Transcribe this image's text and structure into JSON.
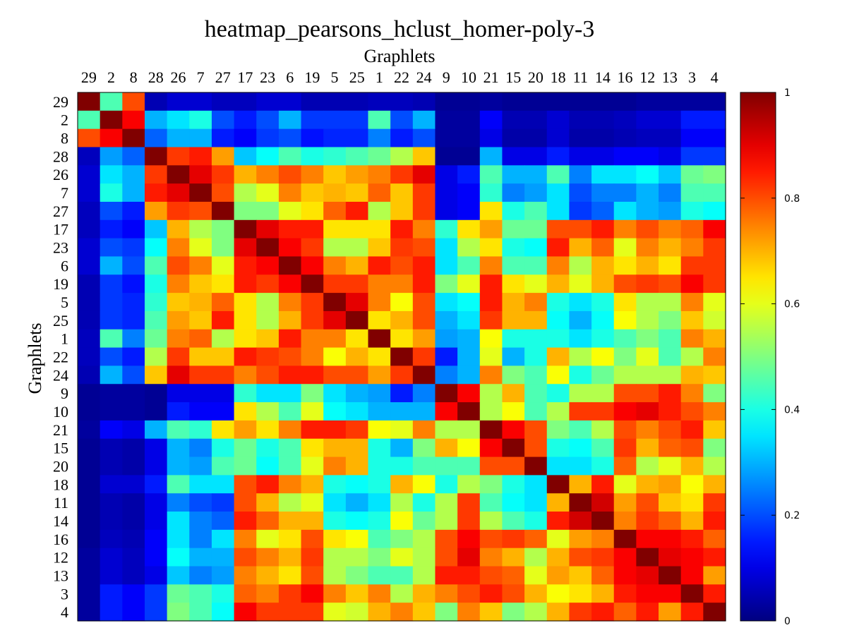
{
  "chart_data": {
    "type": "heatmap",
    "title": "heatmap_pearsons_hclust_homer-poly-3",
    "xlabel": "Graphlets",
    "ylabel": "Graphlets",
    "labels": [
      "29",
      "2",
      "8",
      "28",
      "26",
      "7",
      "27",
      "17",
      "23",
      "6",
      "19",
      "5",
      "25",
      "1",
      "22",
      "24",
      "9",
      "10",
      "21",
      "15",
      "20",
      "18",
      "11",
      "14",
      "16",
      "12",
      "13",
      "3",
      "4"
    ],
    "colorbar": {
      "min": 0,
      "max": 1,
      "ticks": [
        0,
        0.2,
        0.4,
        0.6,
        0.8,
        1
      ],
      "tick_labels": [
        "0",
        "0.2",
        "0.4",
        "0.6",
        "0.8",
        "1"
      ],
      "colormap": "jet"
    },
    "values": [
      [
        1.0,
        0.45,
        0.8,
        0.05,
        0.08,
        0.08,
        0.06,
        0.06,
        0.08,
        0.08,
        0.05,
        0.05,
        0.05,
        0.06,
        0.06,
        0.05,
        0.02,
        0.02,
        0.03,
        0.02,
        0.02,
        0.02,
        0.02,
        0.02,
        0.02,
        0.03,
        0.03,
        0.03,
        0.03
      ],
      [
        0.45,
        1.0,
        0.88,
        0.3,
        0.35,
        0.4,
        0.2,
        0.15,
        0.2,
        0.3,
        0.18,
        0.18,
        0.18,
        0.45,
        0.2,
        0.3,
        0.03,
        0.03,
        0.12,
        0.05,
        0.05,
        0.08,
        0.05,
        0.05,
        0.06,
        0.08,
        0.08,
        0.15,
        0.15
      ],
      [
        0.8,
        0.88,
        1.0,
        0.22,
        0.3,
        0.3,
        0.15,
        0.12,
        0.18,
        0.2,
        0.14,
        0.16,
        0.16,
        0.25,
        0.15,
        0.2,
        0.03,
        0.03,
        0.1,
        0.04,
        0.04,
        0.08,
        0.04,
        0.04,
        0.05,
        0.06,
        0.06,
        0.12,
        0.12
      ],
      [
        0.06,
        0.28,
        0.22,
        1.0,
        0.82,
        0.85,
        0.72,
        0.32,
        0.38,
        0.45,
        0.4,
        0.42,
        0.45,
        0.48,
        0.55,
        0.68,
        0.02,
        0.02,
        0.3,
        0.1,
        0.1,
        0.15,
        0.1,
        0.1,
        0.12,
        0.12,
        0.1,
        0.18,
        0.18
      ],
      [
        0.08,
        0.35,
        0.3,
        0.82,
        1.0,
        0.9,
        0.82,
        0.7,
        0.75,
        0.8,
        0.75,
        0.68,
        0.72,
        0.75,
        0.82,
        0.9,
        0.1,
        0.15,
        0.45,
        0.3,
        0.3,
        0.45,
        0.25,
        0.35,
        0.35,
        0.38,
        0.32,
        0.48,
        0.5
      ],
      [
        0.08,
        0.4,
        0.3,
        0.85,
        0.9,
        1.0,
        0.8,
        0.55,
        0.6,
        0.75,
        0.68,
        0.7,
        0.68,
        0.78,
        0.68,
        0.82,
        0.1,
        0.12,
        0.42,
        0.25,
        0.28,
        0.35,
        0.2,
        0.25,
        0.25,
        0.3,
        0.25,
        0.45,
        0.45
      ],
      [
        0.06,
        0.2,
        0.15,
        0.72,
        0.82,
        0.8,
        1.0,
        0.5,
        0.5,
        0.6,
        0.65,
        0.78,
        0.85,
        0.55,
        0.68,
        0.82,
        0.1,
        0.12,
        0.65,
        0.4,
        0.45,
        0.35,
        0.18,
        0.22,
        0.35,
        0.3,
        0.28,
        0.4,
        0.38
      ],
      [
        0.06,
        0.15,
        0.12,
        0.32,
        0.7,
        0.55,
        0.5,
        1.0,
        0.9,
        0.85,
        0.85,
        0.65,
        0.65,
        0.65,
        0.85,
        0.75,
        0.42,
        0.65,
        0.72,
        0.48,
        0.48,
        0.8,
        0.8,
        0.85,
        0.75,
        0.8,
        0.75,
        0.78,
        0.88
      ],
      [
        0.08,
        0.2,
        0.18,
        0.38,
        0.75,
        0.6,
        0.5,
        0.9,
        1.0,
        0.88,
        0.82,
        0.55,
        0.55,
        0.68,
        0.82,
        0.8,
        0.35,
        0.55,
        0.65,
        0.4,
        0.38,
        0.85,
        0.7,
        0.78,
        0.6,
        0.75,
        0.7,
        0.75,
        0.82
      ],
      [
        0.08,
        0.3,
        0.2,
        0.45,
        0.8,
        0.75,
        0.6,
        0.85,
        0.88,
        1.0,
        0.88,
        0.75,
        0.7,
        0.85,
        0.8,
        0.85,
        0.35,
        0.45,
        0.75,
        0.45,
        0.45,
        0.75,
        0.55,
        0.7,
        0.65,
        0.7,
        0.65,
        0.82,
        0.82
      ],
      [
        0.05,
        0.18,
        0.14,
        0.4,
        0.75,
        0.68,
        0.65,
        0.85,
        0.82,
        0.88,
        1.0,
        0.82,
        0.82,
        0.75,
        0.75,
        0.85,
        0.5,
        0.6,
        0.85,
        0.65,
        0.6,
        0.7,
        0.6,
        0.7,
        0.8,
        0.82,
        0.8,
        0.88,
        0.82
      ],
      [
        0.05,
        0.18,
        0.16,
        0.42,
        0.68,
        0.7,
        0.78,
        0.65,
        0.55,
        0.75,
        0.82,
        1.0,
        0.9,
        0.75,
        0.62,
        0.8,
        0.35,
        0.38,
        0.85,
        0.7,
        0.75,
        0.4,
        0.35,
        0.4,
        0.65,
        0.55,
        0.55,
        0.75,
        0.6
      ],
      [
        0.05,
        0.18,
        0.16,
        0.45,
        0.72,
        0.68,
        0.85,
        0.65,
        0.55,
        0.7,
        0.82,
        0.9,
        1.0,
        0.65,
        0.7,
        0.8,
        0.3,
        0.35,
        0.82,
        0.7,
        0.7,
        0.38,
        0.3,
        0.38,
        0.62,
        0.55,
        0.5,
        0.68,
        0.58
      ],
      [
        0.06,
        0.45,
        0.25,
        0.48,
        0.75,
        0.78,
        0.55,
        0.65,
        0.68,
        0.85,
        0.75,
        0.75,
        0.65,
        1.0,
        0.65,
        0.72,
        0.28,
        0.3,
        0.62,
        0.4,
        0.4,
        0.4,
        0.35,
        0.4,
        0.45,
        0.5,
        0.45,
        0.75,
        0.7
      ],
      [
        0.06,
        0.2,
        0.15,
        0.55,
        0.82,
        0.68,
        0.68,
        0.85,
        0.82,
        0.8,
        0.75,
        0.62,
        0.7,
        0.65,
        1.0,
        0.82,
        0.15,
        0.3,
        0.6,
        0.3,
        0.4,
        0.7,
        0.55,
        0.62,
        0.5,
        0.6,
        0.45,
        0.55,
        0.75
      ],
      [
        0.05,
        0.3,
        0.2,
        0.68,
        0.9,
        0.82,
        0.82,
        0.75,
        0.8,
        0.85,
        0.85,
        0.8,
        0.8,
        0.72,
        0.82,
        1.0,
        0.25,
        0.3,
        0.75,
        0.5,
        0.45,
        0.62,
        0.4,
        0.48,
        0.55,
        0.55,
        0.55,
        0.7,
        0.68
      ],
      [
        0.02,
        0.03,
        0.03,
        0.02,
        0.1,
        0.1,
        0.1,
        0.42,
        0.35,
        0.35,
        0.5,
        0.35,
        0.3,
        0.28,
        0.15,
        0.25,
        1.0,
        0.88,
        0.55,
        0.7,
        0.45,
        0.4,
        0.55,
        0.55,
        0.8,
        0.8,
        0.85,
        0.75,
        0.5
      ],
      [
        0.02,
        0.03,
        0.03,
        0.02,
        0.15,
        0.12,
        0.12,
        0.65,
        0.55,
        0.45,
        0.6,
        0.38,
        0.35,
        0.3,
        0.3,
        0.3,
        0.88,
        1.0,
        0.55,
        0.62,
        0.45,
        0.55,
        0.82,
        0.82,
        0.88,
        0.9,
        0.85,
        0.8,
        0.75
      ],
      [
        0.03,
        0.12,
        0.1,
        0.3,
        0.45,
        0.42,
        0.65,
        0.72,
        0.65,
        0.75,
        0.85,
        0.85,
        0.82,
        0.62,
        0.6,
        0.75,
        0.55,
        0.55,
        1.0,
        0.88,
        0.8,
        0.5,
        0.45,
        0.55,
        0.8,
        0.75,
        0.8,
        0.85,
        0.68
      ],
      [
        0.02,
        0.05,
        0.04,
        0.1,
        0.3,
        0.25,
        0.4,
        0.48,
        0.4,
        0.45,
        0.65,
        0.7,
        0.7,
        0.4,
        0.3,
        0.5,
        0.7,
        0.62,
        0.88,
        1.0,
        0.8,
        0.4,
        0.38,
        0.45,
        0.82,
        0.7,
        0.78,
        0.8,
        0.5
      ],
      [
        0.02,
        0.05,
        0.04,
        0.1,
        0.3,
        0.28,
        0.45,
        0.48,
        0.38,
        0.45,
        0.6,
        0.75,
        0.7,
        0.4,
        0.4,
        0.45,
        0.45,
        0.45,
        0.8,
        0.8,
        1.0,
        0.35,
        0.35,
        0.4,
        0.78,
        0.55,
        0.6,
        0.7,
        0.55
      ],
      [
        0.02,
        0.08,
        0.08,
        0.15,
        0.45,
        0.35,
        0.35,
        0.8,
        0.85,
        0.75,
        0.7,
        0.4,
        0.38,
        0.4,
        0.7,
        0.62,
        0.4,
        0.55,
        0.5,
        0.4,
        0.35,
        1.0,
        0.7,
        0.85,
        0.6,
        0.7,
        0.72,
        0.62,
        0.7
      ],
      [
        0.02,
        0.05,
        0.04,
        0.1,
        0.25,
        0.2,
        0.18,
        0.8,
        0.7,
        0.55,
        0.6,
        0.35,
        0.3,
        0.35,
        0.55,
        0.4,
        0.55,
        0.82,
        0.45,
        0.38,
        0.35,
        0.7,
        1.0,
        0.92,
        0.72,
        0.8,
        0.68,
        0.65,
        0.82
      ],
      [
        0.02,
        0.05,
        0.04,
        0.1,
        0.35,
        0.25,
        0.22,
        0.85,
        0.78,
        0.7,
        0.7,
        0.4,
        0.38,
        0.4,
        0.62,
        0.48,
        0.55,
        0.82,
        0.55,
        0.45,
        0.4,
        0.85,
        0.92,
        1.0,
        0.75,
        0.82,
        0.78,
        0.7,
        0.85
      ],
      [
        0.02,
        0.06,
        0.05,
        0.12,
        0.35,
        0.25,
        0.35,
        0.75,
        0.6,
        0.65,
        0.8,
        0.65,
        0.62,
        0.45,
        0.5,
        0.55,
        0.8,
        0.88,
        0.8,
        0.82,
        0.78,
        0.6,
        0.72,
        0.75,
        1.0,
        0.88,
        0.88,
        0.85,
        0.78
      ],
      [
        0.03,
        0.08,
        0.06,
        0.12,
        0.38,
        0.3,
        0.3,
        0.8,
        0.75,
        0.7,
        0.82,
        0.55,
        0.55,
        0.5,
        0.6,
        0.55,
        0.8,
        0.9,
        0.75,
        0.7,
        0.55,
        0.7,
        0.8,
        0.82,
        0.88,
        1.0,
        0.9,
        0.88,
        0.85
      ],
      [
        0.03,
        0.08,
        0.06,
        0.1,
        0.32,
        0.25,
        0.28,
        0.75,
        0.7,
        0.65,
        0.8,
        0.55,
        0.5,
        0.45,
        0.45,
        0.55,
        0.85,
        0.85,
        0.8,
        0.78,
        0.6,
        0.72,
        0.68,
        0.78,
        0.88,
        0.9,
        1.0,
        0.88,
        0.72
      ],
      [
        0.03,
        0.15,
        0.12,
        0.18,
        0.48,
        0.45,
        0.4,
        0.78,
        0.75,
        0.82,
        0.88,
        0.75,
        0.68,
        0.75,
        0.55,
        0.7,
        0.75,
        0.8,
        0.85,
        0.8,
        0.7,
        0.62,
        0.65,
        0.7,
        0.85,
        0.88,
        0.88,
        1.0,
        0.85
      ],
      [
        0.03,
        0.15,
        0.12,
        0.18,
        0.5,
        0.45,
        0.38,
        0.88,
        0.82,
        0.82,
        0.82,
        0.6,
        0.58,
        0.7,
        0.75,
        0.68,
        0.5,
        0.75,
        0.68,
        0.5,
        0.55,
        0.7,
        0.82,
        0.85,
        0.78,
        0.85,
        0.72,
        0.85,
        1.0
      ]
    ]
  }
}
